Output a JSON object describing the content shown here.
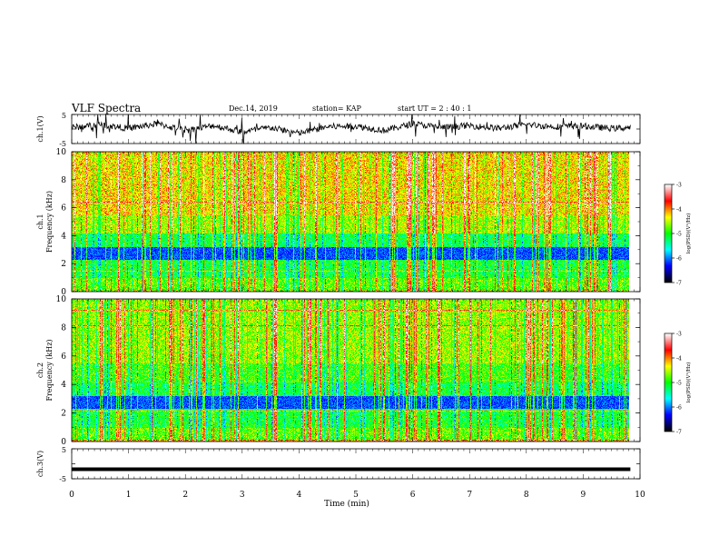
{
  "header": {
    "title": "VLF Spectra",
    "date": "Dec.14, 2019",
    "station": "station= KAP",
    "start": "start UT = 2 : 40 : 1"
  },
  "colors": {
    "trace": "#000000",
    "colormap": [
      "#000000",
      "#0000ff",
      "#00ffff",
      "#00ff00",
      "#ffff00",
      "#ff0000",
      "#ffffff"
    ]
  },
  "chart_data": [
    {
      "type": "line",
      "panel": "ch1-voltage",
      "ylabel": "ch.1(V)",
      "ylim": [
        -5,
        5
      ],
      "yticks": [
        "5",
        "-5"
      ],
      "xlim": [
        0,
        10
      ],
      "x": [
        0,
        0.5,
        1,
        1.5,
        2,
        2.5,
        3,
        3.5,
        4,
        4.5,
        5,
        5.5,
        6,
        6.5,
        7,
        7.5,
        8,
        8.5,
        9,
        9.5,
        9.83
      ],
      "values": [
        0.5,
        1.5,
        0.2,
        1.8,
        -0.5,
        1.2,
        -1,
        0.5,
        -1.5,
        0.8,
        1.0,
        -0.5,
        1.8,
        0.5,
        1.2,
        0.2,
        1.5,
        0.8,
        1.0,
        0.2,
        0.5
      ]
    },
    {
      "type": "heatmap",
      "panel": "ch1-spectrogram",
      "ylabel": "ch.1\nFrequency (kHz)",
      "ylim": [
        0,
        10
      ],
      "yticks": [
        "0",
        "2",
        "4",
        "6",
        "8",
        "10"
      ],
      "xlim": [
        0,
        9.83
      ],
      "colorbar": {
        "label": "log(PSD)(V²/Hz)",
        "range": [
          -7,
          -3
        ],
        "ticks": [
          "-3",
          "-4",
          "-5",
          "-6",
          "-7"
        ]
      }
    },
    {
      "type": "heatmap",
      "panel": "ch2-spectrogram",
      "ylabel": "ch.2\nFrequency (kHz)",
      "ylim": [
        0,
        10
      ],
      "yticks": [
        "0",
        "2",
        "4",
        "6",
        "8",
        "10"
      ],
      "xlim": [
        0,
        9.83
      ],
      "colorbar": {
        "label": "log(PSD)(V²/Hz)",
        "range": [
          -7,
          -3
        ],
        "ticks": [
          "-3",
          "-4",
          "-5",
          "-6",
          "-7"
        ]
      }
    },
    {
      "type": "line",
      "panel": "ch3-voltage",
      "ylabel": "ch.3(V)",
      "ylim": [
        -5,
        5
      ],
      "yticks": [
        "5",
        "-5"
      ],
      "xlim": [
        0,
        10
      ],
      "x": [
        0,
        9.83
      ],
      "values": [
        -1.8,
        -1.8
      ]
    }
  ],
  "xaxis": {
    "label": "Time (min)",
    "ticks": [
      "0",
      "1",
      "2",
      "3",
      "4",
      "5",
      "6",
      "7",
      "8",
      "9",
      "10"
    ]
  }
}
